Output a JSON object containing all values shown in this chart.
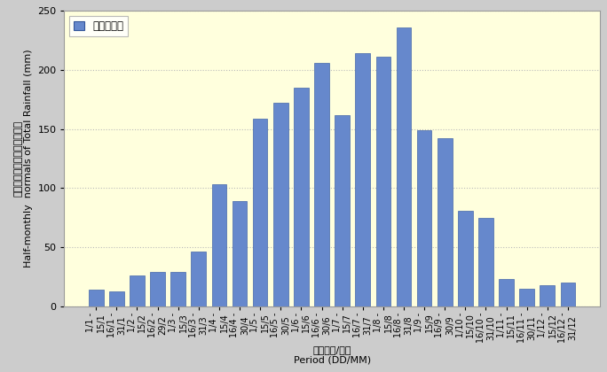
{
  "categories": [
    "1/1 - 15/1",
    "16/1 - 31/1",
    "1/2 - 15/2",
    "16/2 - 29/2",
    "1/3 - 15/3",
    "16/3 - 31/3",
    "1/4 - 15/4",
    "16/4 - 30/4",
    "1/5 - 15/5",
    "16/5 - 30/5",
    "1/6 - 15/6",
    "16/6 - 30/6",
    "1/7 - 15/7",
    "16/7 - 31/7",
    "1/8 - 15/8",
    "16/8 - 31/8",
    "1/9 - 15/9",
    "16/9 - 30/9",
    "1/10 - 15/10",
    "16/10 - 31/10",
    "1/11 - 15/11",
    "16/11 - 30/11",
    "1/12 - 15/12",
    "16/12 - 31/12"
  ],
  "values": [
    14,
    13,
    26,
    29,
    29,
    46,
    103,
    89,
    159,
    172,
    185,
    206,
    162,
    214,
    211,
    236,
    149,
    142,
    81,
    75,
    23,
    15,
    18,
    20
  ],
  "bar_color": "#6688cc",
  "bar_edge_color": "#4466aa",
  "plot_bg_color": "#ffffdd",
  "fig_bg_color": "#cccccc",
  "ylabel_cn": "總雨量的半月平均值（毫米）",
  "ylabel_en": "Half-monthly  normals of Total Rainfall (mm)",
  "xlabel_cn": "期間（日/月）",
  "xlabel_en": "Period (DD/MM)",
  "legend_label": "平均總雨量",
  "ylim": [
    0,
    250
  ],
  "yticks": [
    0,
    50,
    100,
    150,
    200,
    250
  ],
  "grid_color": "#bbbbbb",
  "tick_fontsize": 7,
  "label_fontsize": 8
}
